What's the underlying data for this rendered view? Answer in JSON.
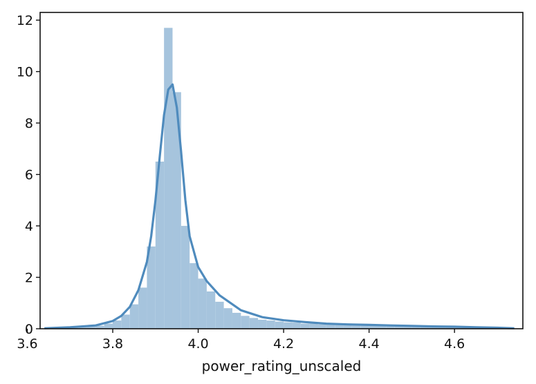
{
  "chart_data": {
    "type": "histogram",
    "title": "",
    "xlabel": "power_rating_unscaled",
    "ylabel": "",
    "xlim": [
      3.63,
      4.76
    ],
    "ylim": [
      0,
      12.3
    ],
    "xticks": [
      3.6,
      3.8,
      4.0,
      4.2,
      4.4,
      4.6
    ],
    "xtick_labels": [
      "3.6",
      "3.8",
      "4.0",
      "4.2",
      "4.4",
      "4.6"
    ],
    "yticks": [
      0,
      2,
      4,
      6,
      8,
      10,
      12
    ],
    "ytick_labels": [
      "0",
      "2",
      "4",
      "6",
      "8",
      "10",
      "12"
    ],
    "grid": false,
    "legend": "none",
    "colors": {
      "bars": "#a6c4dd",
      "kde": "#4f8bbd",
      "axes": "#111111"
    },
    "histogram": {
      "bin_edges": [
        3.64,
        3.66,
        3.68,
        3.7,
        3.72,
        3.74,
        3.76,
        3.78,
        3.8,
        3.82,
        3.84,
        3.86,
        3.88,
        3.9,
        3.92,
        3.94,
        3.96,
        3.98,
        4.0,
        4.02,
        4.04,
        4.06,
        4.08,
        4.1,
        4.12,
        4.14,
        4.16,
        4.18,
        4.2,
        4.22,
        4.24,
        4.26,
        4.28,
        4.3,
        4.32,
        4.34,
        4.36,
        4.38,
        4.4,
        4.42,
        4.44,
        4.46,
        4.48,
        4.5,
        4.52,
        4.54,
        4.56,
        4.58,
        4.6,
        4.62,
        4.64,
        4.66,
        4.68,
        4.7,
        4.72,
        4.74
      ],
      "densities": [
        0.02,
        0.03,
        0.05,
        0.07,
        0.07,
        0.09,
        0.12,
        0.2,
        0.32,
        0.55,
        0.95,
        1.6,
        3.2,
        6.5,
        11.7,
        9.2,
        4.0,
        2.55,
        1.95,
        1.45,
        1.05,
        0.8,
        0.62,
        0.5,
        0.42,
        0.35,
        0.32,
        0.28,
        0.25,
        0.24,
        0.2,
        0.2,
        0.17,
        0.16,
        0.15,
        0.15,
        0.14,
        0.14,
        0.14,
        0.13,
        0.11,
        0.1,
        0.1,
        0.08,
        0.08,
        0.07,
        0.08,
        0.07,
        0.07,
        0.06,
        0.06,
        0.05,
        0.04,
        0.04,
        0.03
      ]
    },
    "kde": {
      "x": [
        3.64,
        3.7,
        3.76,
        3.8,
        3.82,
        3.84,
        3.86,
        3.88,
        3.89,
        3.9,
        3.91,
        3.92,
        3.93,
        3.94,
        3.95,
        3.96,
        3.97,
        3.98,
        4.0,
        4.02,
        4.05,
        4.08,
        4.1,
        4.15,
        4.2,
        4.25,
        4.3,
        4.35,
        4.4,
        4.45,
        4.5,
        4.55,
        4.6,
        4.65,
        4.7,
        4.74
      ],
      "y": [
        0.02,
        0.06,
        0.13,
        0.3,
        0.5,
        0.85,
        1.5,
        2.6,
        3.6,
        5.0,
        6.7,
        8.3,
        9.3,
        9.5,
        8.6,
        6.9,
        5.0,
        3.6,
        2.4,
        1.85,
        1.3,
        0.95,
        0.72,
        0.45,
        0.33,
        0.26,
        0.2,
        0.17,
        0.15,
        0.13,
        0.11,
        0.09,
        0.08,
        0.06,
        0.04,
        0.02
      ]
    }
  }
}
